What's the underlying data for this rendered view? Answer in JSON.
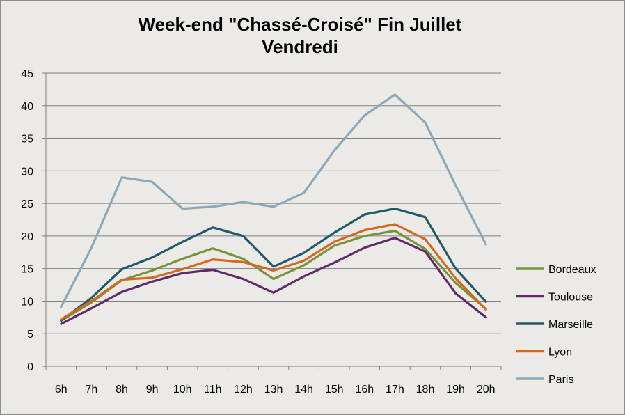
{
  "chart_data": {
    "type": "line",
    "title": "Week-end \"Chassé-Croisé\" Fin Juillet",
    "subtitle": "Vendredi",
    "xlabel": "",
    "ylabel": "",
    "ylim": [
      0,
      45
    ],
    "yticks": [
      0,
      5,
      10,
      15,
      20,
      25,
      30,
      35,
      40,
      45
    ],
    "grid": true,
    "legend_position": "right",
    "categories": [
      "6h",
      "7h",
      "8h",
      "9h",
      "10h",
      "11h",
      "12h",
      "13h",
      "14h",
      "15h",
      "16h",
      "17h",
      "18h",
      "19h",
      "20h"
    ],
    "series": [
      {
        "name": "Bordeaux",
        "color": "#77933c",
        "values": [
          7.0,
          9.8,
          13.2,
          14.7,
          16.5,
          18.1,
          16.5,
          13.4,
          15.5,
          18.5,
          20.0,
          20.8,
          18.0,
          12.8,
          8.8
        ]
      },
      {
        "name": "Toulouse",
        "color": "#5f2c67",
        "values": [
          6.5,
          8.9,
          11.4,
          13.0,
          14.3,
          14.8,
          13.4,
          11.3,
          13.8,
          15.9,
          18.2,
          19.7,
          17.6,
          11.2,
          7.5
        ]
      },
      {
        "name": "Marseille",
        "color": "#215968",
        "values": [
          7.0,
          10.5,
          14.9,
          16.7,
          19.1,
          21.3,
          20.0,
          15.3,
          17.4,
          20.5,
          23.3,
          24.2,
          22.9,
          15.0,
          9.9
        ]
      },
      {
        "name": "Lyon",
        "color": "#d2691e",
        "values": [
          7.2,
          10.0,
          13.3,
          13.6,
          14.9,
          16.4,
          16.0,
          14.7,
          16.2,
          19.1,
          20.9,
          21.8,
          19.5,
          13.5,
          8.7
        ]
      },
      {
        "name": "Paris",
        "color": "#8ca8b8",
        "values": [
          9.1,
          18.2,
          29.0,
          28.3,
          24.2,
          24.5,
          25.2,
          24.5,
          26.6,
          33.1,
          38.5,
          41.7,
          37.4,
          27.8,
          18.7
        ]
      }
    ]
  }
}
